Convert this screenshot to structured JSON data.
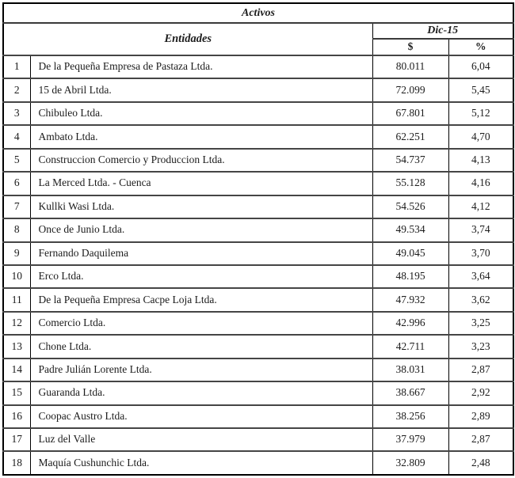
{
  "table": {
    "title": "Activos",
    "entities_header": "Entidades",
    "period_header": "Dic-15",
    "dollar_header": "$",
    "percent_header": "%",
    "rows": [
      {
        "num": "1",
        "name": "De la Pequeña Empresa de Pastaza Ltda.",
        "value": "80.011",
        "percent": "6,04"
      },
      {
        "num": "2",
        "name": "15 de Abril Ltda.",
        "value": "72.099",
        "percent": "5,45"
      },
      {
        "num": "3",
        "name": "Chibuleo Ltda.",
        "value": "67.801",
        "percent": "5,12"
      },
      {
        "num": "4",
        "name": "Ambato Ltda.",
        "value": "62.251",
        "percent": "4,70"
      },
      {
        "num": "5",
        "name": "Construccion Comercio y Produccion Ltda.",
        "value": "54.737",
        "percent": "4,13"
      },
      {
        "num": "6",
        "name": "La Merced Ltda. - Cuenca",
        "value": "55.128",
        "percent": "4,16"
      },
      {
        "num": "7",
        "name": "Kullki Wasi Ltda.",
        "value": "54.526",
        "percent": "4,12"
      },
      {
        "num": "8",
        "name": "Once de Junio Ltda.",
        "value": "49.534",
        "percent": "3,74"
      },
      {
        "num": "9",
        "name": "Fernando Daquilema",
        "value": "49.045",
        "percent": "3,70"
      },
      {
        "num": "10",
        "name": "Erco Ltda.",
        "value": "48.195",
        "percent": "3,64"
      },
      {
        "num": "11",
        "name": "De la Pequeña Empresa Cacpe Loja Ltda.",
        "value": "47.932",
        "percent": "3,62"
      },
      {
        "num": "12",
        "name": "Comercio Ltda.",
        "value": "42.996",
        "percent": "3,25"
      },
      {
        "num": "13",
        "name": "Chone Ltda.",
        "value": "42.711",
        "percent": "3,23"
      },
      {
        "num": "14",
        "name": "Padre Julián Lorente Ltda.",
        "value": "38.031",
        "percent": "2,87"
      },
      {
        "num": "15",
        "name": "Guaranda Ltda.",
        "value": "38.667",
        "percent": "2,92"
      },
      {
        "num": "16",
        "name": "Coopac Austro Ltda.",
        "value": "38.256",
        "percent": "2,89"
      },
      {
        "num": "17",
        "name": "Luz del Valle",
        "value": "37.979",
        "percent": "2,87"
      },
      {
        "num": "18",
        "name": "Maquía Cushunchic Ltda.",
        "value": "32.809",
        "percent": "2,48"
      }
    ]
  }
}
